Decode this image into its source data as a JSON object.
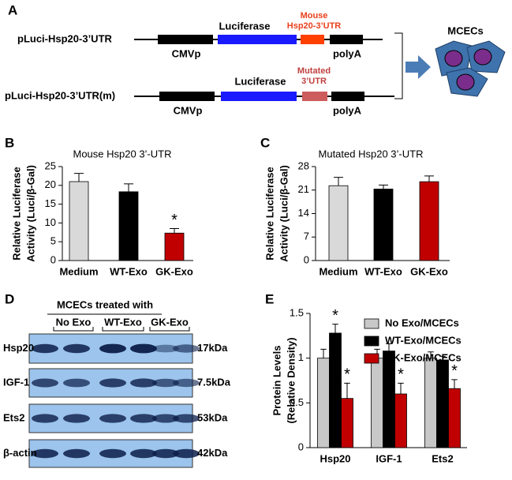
{
  "panel_a": {
    "panel": "A",
    "constructs": [
      {
        "name": "pLuci-Hsp20-3’UTR",
        "promoter": "CMVp",
        "gene": "Luciferase",
        "utr": [
          "Mouse",
          "Hsp20-3’UTR"
        ],
        "tail": "polyA"
      },
      {
        "name": "pLuci-Hsp20-3’UTR(m)",
        "promoter": "CMVp",
        "gene": "Luciferase",
        "utr": [
          "Mutated",
          "3’UTR"
        ],
        "tail": "polyA"
      }
    ],
    "target": "MCECs"
  },
  "panel_d": {
    "panel": "D",
    "header": "MCECs treated with",
    "groups": [
      "No Exo",
      "WT-Exo",
      "GK-Exo"
    ],
    "rows": [
      {
        "protein": "Hsp20",
        "size": "17kDa"
      },
      {
        "protein": "IGF-1",
        "size": "7.5kDa"
      },
      {
        "protein": "Ets2",
        "size": "53kDa"
      },
      {
        "protein": "β-actin",
        "size": "42kDa"
      }
    ]
  },
  "chart_data": [
    {
      "type": "bar",
      "panel": "B",
      "title": "Mouse Hsp20 3’-UTR",
      "ylabel": [
        "Relative Luciferase",
        "Activity (Luci/β-Gal)"
      ],
      "categories": [
        "Medium",
        "WT-Exo",
        "GK-Exo"
      ],
      "values": [
        21,
        18.3,
        7.3
      ],
      "errors": [
        2.2,
        2.1,
        1.2
      ],
      "colors": [
        "#d9d9d9",
        "#000000",
        "#c00000"
      ],
      "significance": [
        null,
        null,
        "*"
      ],
      "ylim": [
        0,
        25
      ],
      "yticks": [
        0,
        5,
        10,
        15,
        20,
        25
      ]
    },
    {
      "type": "bar",
      "panel": "C",
      "title": "Mutated Hsp20 3’-UTR",
      "ylabel": [
        "Relative Luciferase",
        "Activity (Luci/β-Gal)"
      ],
      "categories": [
        "Medium",
        "WT-Exo",
        "GK-Exo"
      ],
      "values": [
        22.3,
        21.3,
        23.5
      ],
      "errors": [
        2.5,
        1.2,
        1.7
      ],
      "colors": [
        "#d9d9d9",
        "#000000",
        "#c00000"
      ],
      "ylim": [
        0,
        28
      ],
      "yticks": [
        0,
        7,
        14,
        21,
        28
      ]
    },
    {
      "type": "bar",
      "panel": "E",
      "ylabel": [
        "Protein Levels",
        "(Relative Density)"
      ],
      "categories": [
        "Hsp20",
        "IGF-1",
        "Ets2"
      ],
      "series": [
        {
          "name": "No Exo/MCECs",
          "color": "#c8c8c8",
          "values": [
            1,
            1,
            1
          ],
          "errors": [
            0.1,
            0.1,
            0.07
          ]
        },
        {
          "name": "WT-Exo/MCECs",
          "color": "#000000",
          "values": [
            1.28,
            1.08,
            0.98
          ],
          "errors": [
            0.1,
            0.08,
            0.04
          ],
          "significance": [
            "*",
            null,
            null
          ]
        },
        {
          "name": "GK-Exo/MCECs",
          "color": "#c00000",
          "values": [
            0.55,
            0.6,
            0.66
          ],
          "errors": [
            0.17,
            0.12,
            0.1
          ],
          "significance": [
            "*",
            "*",
            "*"
          ]
        }
      ],
      "ylim": [
        0,
        1.5
      ],
      "yticks": [
        0,
        0.5,
        1,
        1.5
      ],
      "legend": "upper right"
    }
  ]
}
